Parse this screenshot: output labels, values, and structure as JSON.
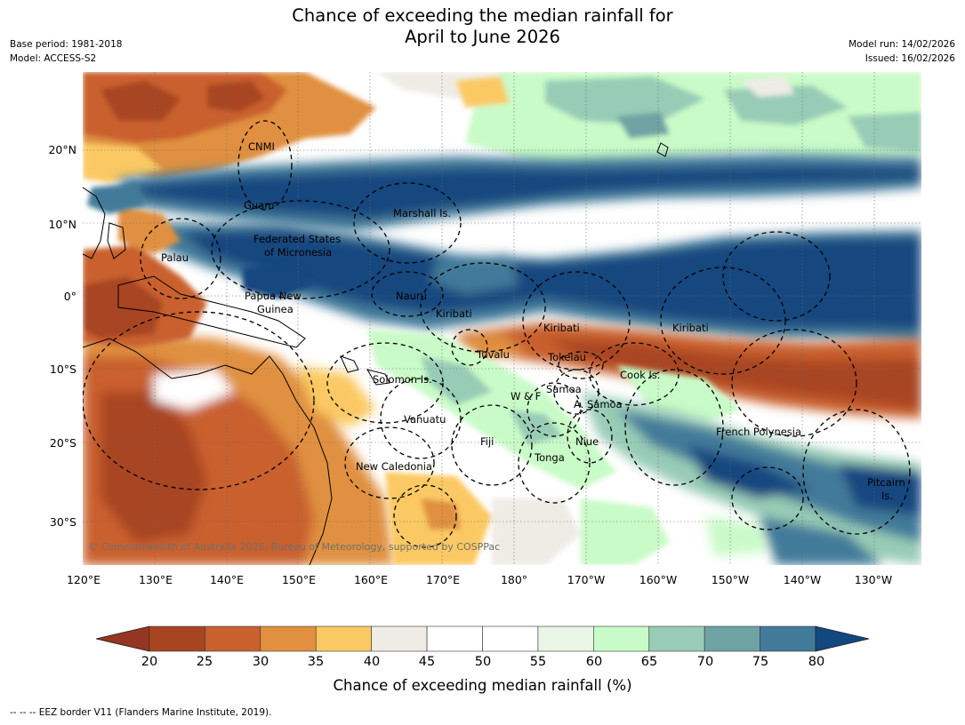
{
  "title_line1": "Chance of exceeding the median rainfall for",
  "title_line2": "April to June 2026",
  "meta": {
    "base_period": "Base period: 1981-2018",
    "model": "Model: ACCESS-S2",
    "model_run": "Model run: 14/02/2026",
    "issued": "Issued: 16/02/2026"
  },
  "lat_ticks": [
    "20°N",
    "10°N",
    "0°",
    "10°S",
    "20°S",
    "30°S"
  ],
  "lon_ticks": [
    "120°E",
    "130°E",
    "140°E",
    "150°E",
    "160°E",
    "170°E",
    "180°",
    "170°W",
    "160°W",
    "150°W",
    "140°W",
    "130°W"
  ],
  "places": {
    "cnmi": "CNMI",
    "guam": "Guam",
    "marshall": "Marshall Is.",
    "fsm1": "Federated States",
    "fsm2": "of Micronesia",
    "palau": "Palau",
    "png1": "Papua New",
    "png2": "Guinea",
    "nauru": "Nauru",
    "kiribati_w": "Kiribati",
    "kiribati_c": "Kiribati",
    "kiribati_e": "Kiribati",
    "tuvalu": "Tuvalu",
    "tokelau": "Tokelau",
    "cook": "Cook Is.",
    "solomon": "Solomon Is.",
    "samoa": "Samoa",
    "wf": "W & F",
    "asamoa": "A. Samoa",
    "vanuatu": "Vanuatu",
    "fiji": "Fiji",
    "niue": "Niue",
    "tonga": "Tonga",
    "french_poly": "French Polynesia",
    "newcal": "New Caledonia",
    "pitcairn1": "Pitcairn",
    "pitcairn2": "Is."
  },
  "copyright": "© Commonwealth of Australia 2026, Bureau of Meteorology, supported by COSPPac",
  "colorbar": {
    "ticks": [
      "20",
      "25",
      "30",
      "35",
      "40",
      "45",
      "50",
      "55",
      "60",
      "65",
      "70",
      "75",
      "80"
    ],
    "colors": [
      "#a84521",
      "#c9612f",
      "#e0903f",
      "#fbc964",
      "#efece6",
      "#ffffff",
      "#ffffff",
      "#e9f6e6",
      "#c9fbc8",
      "#98ccb6",
      "#6fa3a4",
      "#427a9a"
    ],
    "under_color": "#963521",
    "over_color": "#12477f",
    "label": "Chance of exceeding median rainfall (%)"
  },
  "footnote": "--  --  -- EEZ border V11 (Flanders Marine Institute, 2019)."
}
